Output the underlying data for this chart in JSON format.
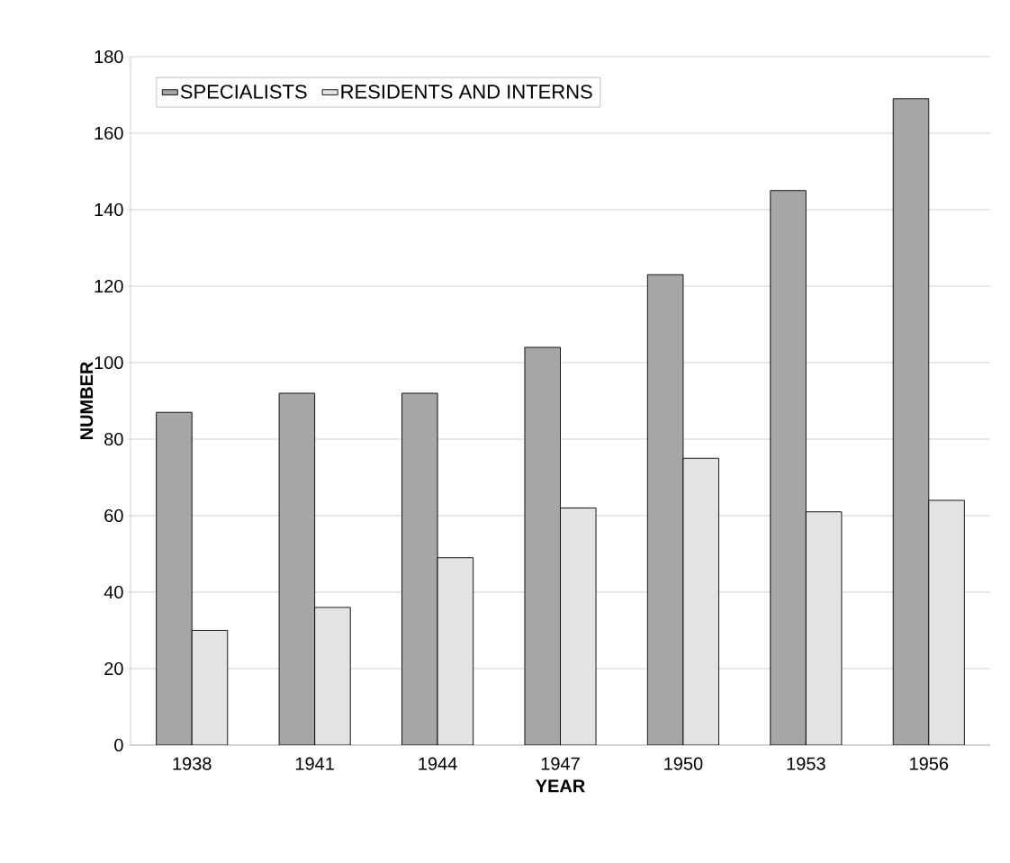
{
  "chart_data": {
    "type": "bar",
    "xlabel": "YEAR",
    "ylabel": "NUMBER",
    "categories": [
      "1938",
      "1941",
      "1944",
      "1947",
      "1950",
      "1953",
      "1956"
    ],
    "series": [
      {
        "name": "SPECIALISTS",
        "color": "#a6a6a6",
        "values": [
          87,
          92,
          92,
          104,
          123,
          145,
          169
        ]
      },
      {
        "name": "RESIDENTS AND INTERNS",
        "color": "#e3e3e3",
        "values": [
          30,
          36,
          49,
          62,
          75,
          61,
          64
        ]
      }
    ],
    "ylim": [
      0,
      180
    ],
    "yticks": [
      0,
      20,
      40,
      60,
      80,
      100,
      120,
      140,
      160,
      180
    ],
    "grid": "y",
    "legend": "top left"
  }
}
